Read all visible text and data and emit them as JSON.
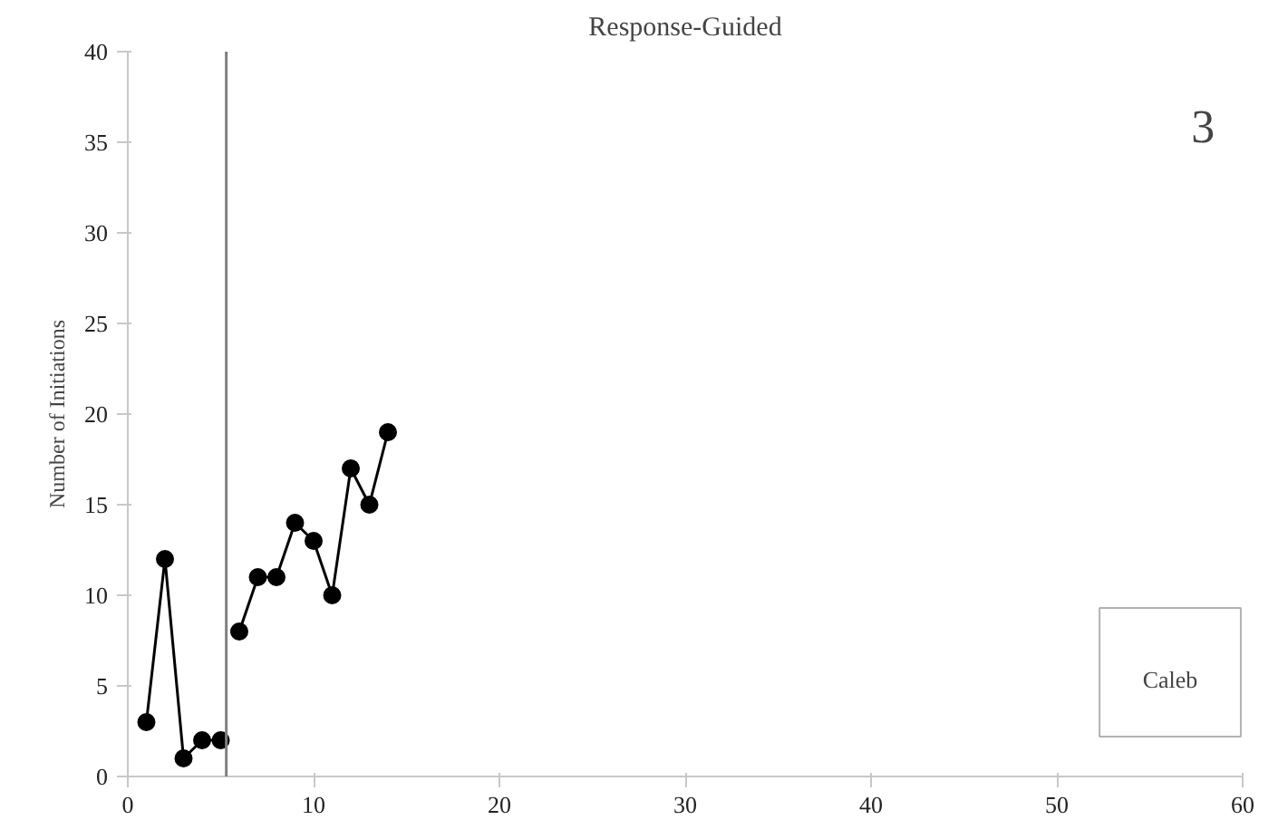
{
  "chart_data": {
    "type": "line",
    "title": "Response-Guided",
    "ylabel": "Number of Initiations",
    "annotations": [
      "3",
      "Caleb"
    ],
    "series": [
      {
        "color": "#000000",
        "x": [
          1,
          2,
          3,
          4,
          5
        ],
        "values": [
          3,
          12,
          1,
          2,
          2
        ]
      },
      {
        "color": "#000000",
        "x": [
          6,
          7,
          8,
          9,
          10,
          11,
          12,
          13,
          14
        ],
        "values": [
          8,
          11,
          11,
          14,
          13,
          10,
          17,
          15,
          19
        ]
      }
    ],
    "xlim": [
      0,
      60
    ],
    "xticks": [
      0,
      10,
      20,
      30,
      40,
      50,
      60
    ],
    "ylim": [
      0,
      40
    ],
    "yticks": [
      0,
      5,
      10,
      15,
      20,
      25,
      30,
      35,
      40
    ],
    "ref_lines": [
      {
        "axis": "x",
        "value": 5.3,
        "color": "#808080",
        "line_style": "solid"
      }
    ],
    "grid": false,
    "marker": "circle",
    "line_style": "solid"
  }
}
